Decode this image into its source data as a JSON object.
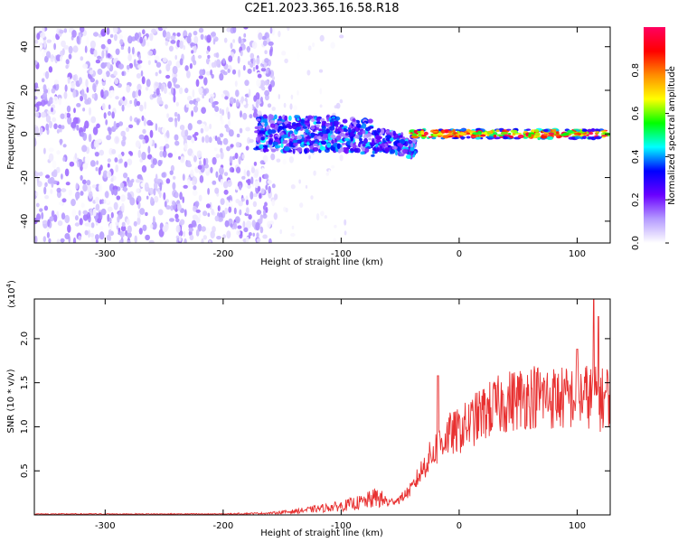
{
  "title": "C2E1.2023.365.16.58.R18",
  "chart_data": [
    {
      "type": "heatmap",
      "xlabel": "Height of straight line (km)",
      "ylabel": "Frequency (Hz)",
      "xlim": [
        -360,
        128
      ],
      "ylim": [
        -50,
        49
      ],
      "xticks": [
        -300,
        -200,
        -100,
        0,
        100
      ],
      "yticks": [
        -40,
        -20,
        0,
        20,
        40
      ],
      "colorbar": {
        "label": "Normalized spectral amplitude",
        "range": [
          0,
          1
        ],
        "ticks": [
          "0.0",
          "0.2",
          "0.4",
          "0.6",
          "0.8"
        ],
        "colors": [
          "#ffffff",
          "#b59bff",
          "#6a00ff",
          "#0000ff",
          "#00ffff",
          "#00ff00",
          "#ffff00",
          "#ff8c00",
          "#ff0000",
          "#ff0060"
        ]
      },
      "features": [
        {
          "name": "broadband noise",
          "x_range": [
            -360,
            -157
          ],
          "y_range": [
            -50,
            49
          ],
          "amplitude": [
            0,
            0.15
          ]
        },
        {
          "name": "scattered noise",
          "x_range": [
            -157,
            -95
          ],
          "y_range": [
            -50,
            49
          ],
          "amplitude": [
            0,
            0.05
          ]
        },
        {
          "name": "drift band",
          "x_range": [
            -172,
            -37
          ],
          "y_range": [
            -14,
            10
          ],
          "amplitude": [
            0.1,
            0.45
          ]
        },
        {
          "name": "narrowband tone",
          "x_range": [
            -40,
            128
          ],
          "y_range": [
            -3,
            3
          ],
          "amplitude": [
            0.5,
            1.0
          ]
        }
      ]
    },
    {
      "type": "line",
      "xlabel": "Height of straight line (km)",
      "ylabel": "SNR (10 * v/v)",
      "yscale_label": "(x10",
      "yscale_exponent": "4",
      "yscale_close": ")",
      "xlim": [
        -360,
        128
      ],
      "ylim": [
        0,
        2.45
      ],
      "xticks": [
        -300,
        -200,
        -100,
        0,
        100
      ],
      "yticks": [
        0.5,
        1.0,
        1.5,
        2.0
      ],
      "ytick_labels": [
        "0.5",
        "1.0",
        "1.5",
        "2.0"
      ],
      "color": "#e83030",
      "series": [
        {
          "x": [
            -360,
            -300,
            -250,
            -200,
            -160,
            -140,
            -120,
            -100,
            -80,
            -70,
            -60,
            -50,
            -40,
            -30,
            -20,
            -10,
            0,
            10,
            20,
            30,
            40,
            50,
            60,
            70,
            80,
            90,
            100,
            110,
            120,
            128
          ],
          "values": [
            0.01,
            0.01,
            0.01,
            0.01,
            0.02,
            0.04,
            0.07,
            0.1,
            0.15,
            0.2,
            0.14,
            0.18,
            0.3,
            0.55,
            0.75,
            0.9,
            0.95,
            1.05,
            1.15,
            1.22,
            1.28,
            1.32,
            1.35,
            1.35,
            1.33,
            1.32,
            1.34,
            1.35,
            1.3,
            1.38
          ]
        }
      ],
      "peaks": [
        {
          "x": -18,
          "value": 1.58
        },
        {
          "x": 100,
          "value": 1.88
        },
        {
          "x": 114,
          "value": 2.44
        },
        {
          "x": 118,
          "value": 2.25
        }
      ]
    }
  ]
}
